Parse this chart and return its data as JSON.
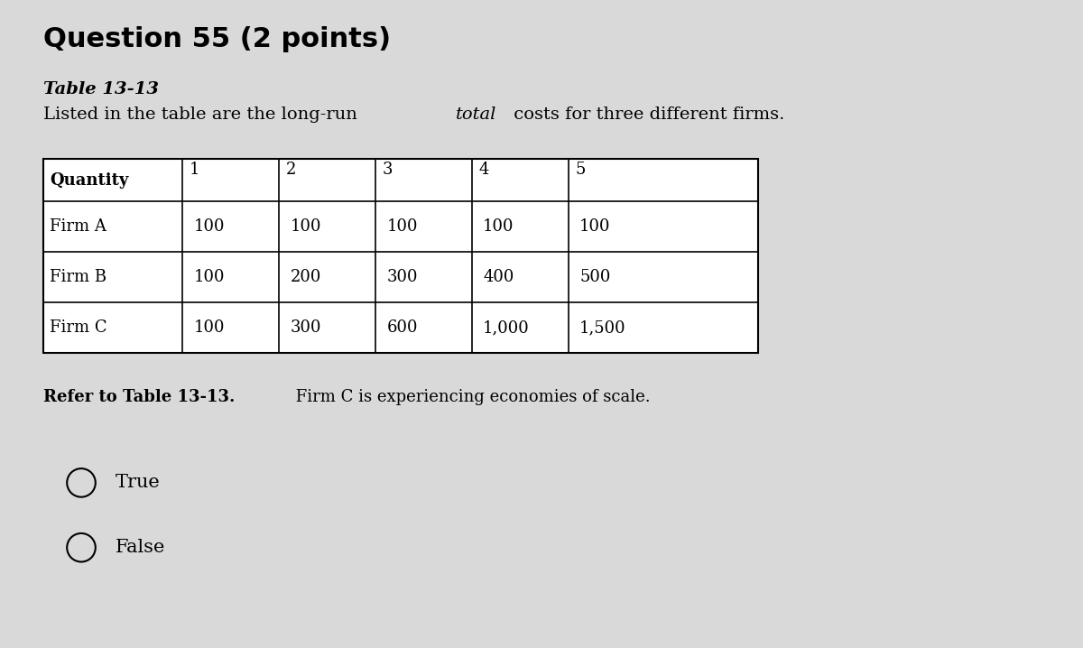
{
  "title": "Question 55 (2 points)",
  "table_title": "Table 13-13",
  "desc_part1": "Listed in the table are the long-run ",
  "desc_italic": "total",
  "desc_part2": " costs for three different firms.",
  "table_headers": [
    "Quantity",
    "1",
    "2",
    "3",
    "4",
    "5"
  ],
  "table_rows": [
    [
      "Firm A",
      "100",
      "100",
      "100",
      "100",
      "100"
    ],
    [
      "Firm B",
      "100",
      "200",
      "300",
      "400",
      "500"
    ],
    [
      "Firm C",
      "100",
      "300",
      "600",
      "1,000",
      "1,500"
    ]
  ],
  "refer_bold": "Refer to Table 13-13.",
  "refer_normal": " Firm C is experiencing economies of scale.",
  "option_true": "True",
  "option_false": "False",
  "bg_color": "#d9d9d9",
  "text_color": "#000000",
  "title_fontsize": 22,
  "table_title_fontsize": 14,
  "desc_fontsize": 14,
  "table_fontsize": 13,
  "refer_fontsize": 13,
  "option_fontsize": 15
}
